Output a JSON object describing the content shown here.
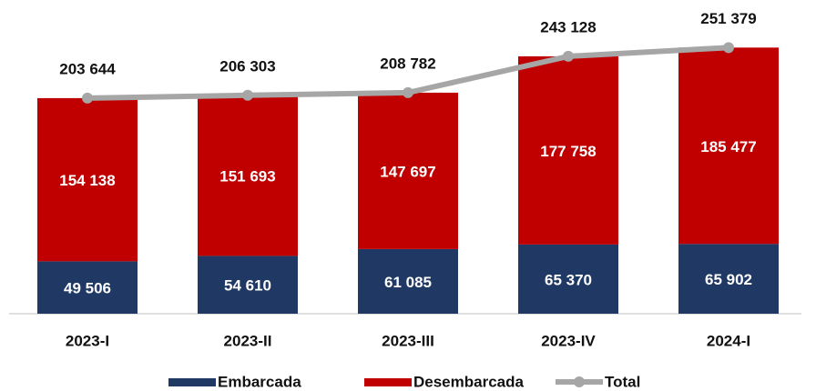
{
  "chart_data": {
    "type": "stacked_bar_line",
    "categories": [
      "2023-I",
      "2023-II",
      "2023-III",
      "2023-IV",
      "2024-I"
    ],
    "series": [
      {
        "name": "Embarcada",
        "color": "#1f3864",
        "values": [
          49506,
          54610,
          61085,
          65370,
          65902
        ],
        "value_labels": [
          "49 506",
          "54 610",
          "61 085",
          "65 370",
          "65 902"
        ]
      },
      {
        "name": "Desembarcada",
        "color": "#c00000",
        "values": [
          154138,
          151693,
          147697,
          177758,
          185477
        ],
        "value_labels": [
          "154 138",
          "151 693",
          "147 697",
          "177 758",
          "185 477"
        ]
      },
      {
        "name": "Total",
        "color": "#a6a6a6",
        "type": "line",
        "values": [
          203644,
          206303,
          208782,
          243128,
          251379
        ],
        "value_labels": [
          "203 644",
          "206 303",
          "208 782",
          "243 128",
          "251 379"
        ]
      }
    ],
    "ylim": [
      0,
      280000
    ]
  }
}
